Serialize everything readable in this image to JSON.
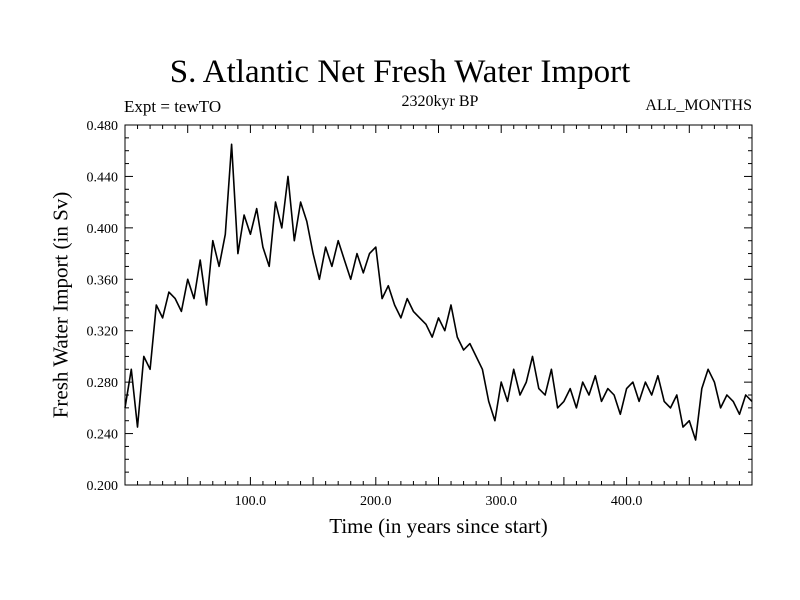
{
  "chart_data": {
    "type": "line",
    "title": "S. Atlantic Net Fresh Water Import",
    "subtitle": "2320kyr BP",
    "left_label": "Expt = tewTO",
    "right_label": "ALL_MONTHS",
    "xlabel": "Time (in years since start)",
    "ylabel": "Fresh Water Import (in Sv)",
    "xlim": [
      0,
      500
    ],
    "ylim": [
      0.2,
      0.48
    ],
    "x_ticks": [
      "100.0",
      "200.0",
      "300.0",
      "400.0"
    ],
    "y_ticks": [
      "0.200",
      "0.240",
      "0.280",
      "0.320",
      "0.360",
      "0.400",
      "0.440",
      "0.480"
    ],
    "grid": false,
    "series": [
      {
        "name": "Net Fresh Water Import",
        "x": [
          0,
          5,
          10,
          15,
          20,
          25,
          30,
          35,
          40,
          45,
          50,
          55,
          60,
          65,
          70,
          75,
          80,
          85,
          90,
          95,
          100,
          105,
          110,
          115,
          120,
          125,
          130,
          135,
          140,
          145,
          150,
          155,
          160,
          165,
          170,
          175,
          180,
          185,
          190,
          195,
          200,
          205,
          210,
          215,
          220,
          225,
          230,
          235,
          240,
          245,
          250,
          255,
          260,
          265,
          270,
          275,
          280,
          285,
          290,
          295,
          300,
          305,
          310,
          315,
          320,
          325,
          330,
          335,
          340,
          345,
          350,
          355,
          360,
          365,
          370,
          375,
          380,
          385,
          390,
          395,
          400,
          405,
          410,
          415,
          420,
          425,
          430,
          435,
          440,
          445,
          450,
          455,
          460,
          465,
          470,
          475,
          480,
          485,
          490,
          495,
          500
        ],
        "values": [
          0.26,
          0.29,
          0.245,
          0.3,
          0.29,
          0.34,
          0.33,
          0.35,
          0.345,
          0.335,
          0.36,
          0.345,
          0.375,
          0.34,
          0.39,
          0.37,
          0.395,
          0.465,
          0.38,
          0.41,
          0.395,
          0.415,
          0.385,
          0.37,
          0.42,
          0.4,
          0.44,
          0.39,
          0.42,
          0.405,
          0.38,
          0.36,
          0.385,
          0.37,
          0.39,
          0.375,
          0.36,
          0.38,
          0.365,
          0.38,
          0.385,
          0.345,
          0.355,
          0.34,
          0.33,
          0.345,
          0.335,
          0.33,
          0.325,
          0.315,
          0.33,
          0.32,
          0.34,
          0.315,
          0.305,
          0.31,
          0.3,
          0.29,
          0.265,
          0.25,
          0.28,
          0.265,
          0.29,
          0.27,
          0.28,
          0.3,
          0.275,
          0.27,
          0.29,
          0.26,
          0.265,
          0.275,
          0.26,
          0.28,
          0.27,
          0.285,
          0.265,
          0.275,
          0.27,
          0.255,
          0.275,
          0.28,
          0.265,
          0.28,
          0.27,
          0.285,
          0.265,
          0.26,
          0.27,
          0.245,
          0.25,
          0.235,
          0.275,
          0.29,
          0.28,
          0.26,
          0.27,
          0.265,
          0.255,
          0.27,
          0.265
        ]
      }
    ]
  }
}
